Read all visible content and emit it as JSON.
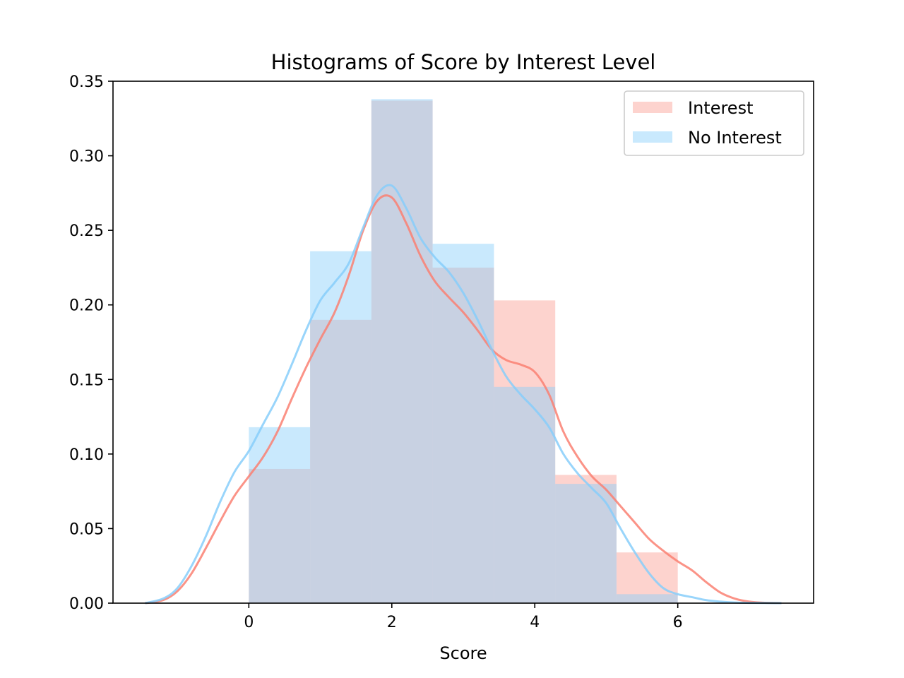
{
  "chart_data": {
    "type": "bar",
    "title": "Histograms of Score by Interest Level",
    "xlabel": "Score",
    "ylabel": "",
    "xlim": [
      -1.9,
      7.9
    ],
    "ylim": [
      0,
      0.35
    ],
    "xticks": [
      0,
      2,
      4,
      6
    ],
    "xtick_labels": [
      "0",
      "2",
      "4",
      "6"
    ],
    "yticks": [
      0,
      0.05,
      0.1,
      0.15,
      0.2,
      0.25,
      0.3,
      0.35
    ],
    "ytick_labels": [
      "0.00",
      "0.05",
      "0.10",
      "0.15",
      "0.20",
      "0.25",
      "0.30",
      "0.35"
    ],
    "grid": false,
    "legend_position": "top-right",
    "bin_edges": [
      0,
      0.857,
      1.714,
      2.571,
      3.429,
      4.286,
      5.143,
      6.0
    ],
    "series": [
      {
        "name": "Interest",
        "color": "#fa8072",
        "bar_opacity": 0.35,
        "values": [
          0.09,
          0.19,
          0.337,
          0.225,
          0.203,
          0.086,
          0.034
        ],
        "kde": {
          "x": [
            -1.45,
            -1.2,
            -1.0,
            -0.8,
            -0.6,
            -0.4,
            -0.2,
            0.0,
            0.2,
            0.4,
            0.6,
            0.8,
            1.0,
            1.2,
            1.4,
            1.6,
            1.8,
            2.0,
            2.2,
            2.4,
            2.6,
            2.8,
            3.0,
            3.2,
            3.4,
            3.6,
            3.8,
            4.0,
            4.2,
            4.4,
            4.6,
            4.8,
            5.0,
            5.2,
            5.4,
            5.6,
            5.8,
            6.0,
            6.2,
            6.4,
            6.6,
            6.8,
            7.0,
            7.2,
            7.45
          ],
          "y": [
            0.0,
            0.002,
            0.008,
            0.02,
            0.037,
            0.055,
            0.072,
            0.085,
            0.098,
            0.115,
            0.137,
            0.158,
            0.177,
            0.195,
            0.22,
            0.25,
            0.27,
            0.272,
            0.255,
            0.233,
            0.216,
            0.205,
            0.195,
            0.183,
            0.17,
            0.163,
            0.16,
            0.155,
            0.14,
            0.115,
            0.098,
            0.085,
            0.076,
            0.065,
            0.054,
            0.043,
            0.035,
            0.028,
            0.022,
            0.014,
            0.007,
            0.003,
            0.001,
            0.0003,
            0.0
          ]
        }
      },
      {
        "name": "No Interest",
        "color": "#87cefa",
        "bar_opacity": 0.45,
        "values": [
          0.118,
          0.236,
          0.338,
          0.241,
          0.145,
          0.08,
          0.006
        ],
        "kde": {
          "x": [
            -1.45,
            -1.2,
            -1.0,
            -0.8,
            -0.6,
            -0.4,
            -0.2,
            0.0,
            0.2,
            0.4,
            0.6,
            0.8,
            1.0,
            1.2,
            1.4,
            1.6,
            1.8,
            2.0,
            2.2,
            2.4,
            2.6,
            2.8,
            3.0,
            3.2,
            3.4,
            3.6,
            3.8,
            4.0,
            4.2,
            4.4,
            4.6,
            4.8,
            5.0,
            5.2,
            5.4,
            5.6,
            5.8,
            6.0,
            6.2,
            6.4,
            6.6,
            6.8,
            7.0,
            7.2,
            7.45
          ],
          "y": [
            0.0,
            0.003,
            0.01,
            0.025,
            0.045,
            0.068,
            0.088,
            0.102,
            0.12,
            0.138,
            0.16,
            0.183,
            0.203,
            0.215,
            0.228,
            0.252,
            0.274,
            0.28,
            0.265,
            0.245,
            0.232,
            0.222,
            0.208,
            0.19,
            0.17,
            0.152,
            0.14,
            0.13,
            0.118,
            0.1,
            0.087,
            0.077,
            0.067,
            0.05,
            0.034,
            0.02,
            0.01,
            0.006,
            0.004,
            0.002,
            0.001,
            0.0004,
            0.0002,
            0.0001,
            0.0
          ]
        }
      }
    ]
  }
}
